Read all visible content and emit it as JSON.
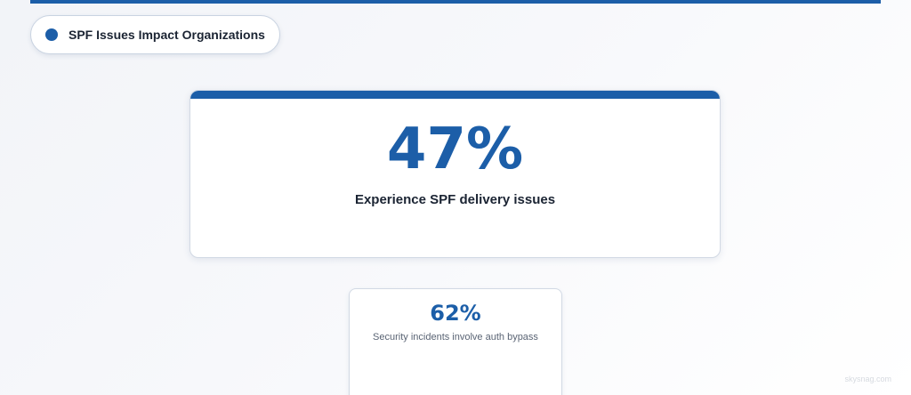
{
  "header": {
    "badge_label": "SPF Issues Impact Organizations"
  },
  "main_stat": {
    "value": "47%",
    "caption": "Experience SPF delivery issues"
  },
  "secondary_stat": {
    "value": "62%",
    "caption": "Security incidents involve auth bypass"
  },
  "watermark": "skysnag.com",
  "colors": {
    "accent": "#1c5ea8",
    "text_dark": "#1b2433",
    "text_muted": "#5a6474"
  }
}
